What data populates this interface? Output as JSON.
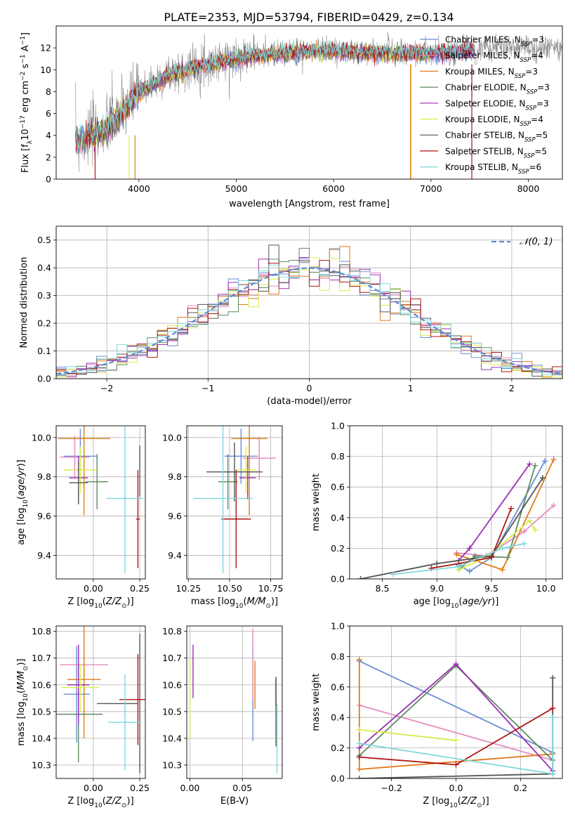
{
  "figure": {
    "title": "PLATE=2353, MJD=53794, FIBERID=0429, z=0.134"
  },
  "colors": {
    "Chabrier MILES": "#6b8dd6",
    "Salpeter MILES": "#e58cc0",
    "Kroupa MILES": "#e07b1a",
    "Chabrier ELODIE": "#5f8a60",
    "Salpeter ELODIE": "#9a2fb3",
    "Kroupa ELODIE": "#d9ec4c",
    "Chabrier STELIB": "#555555",
    "Salpeter STELIB": "#b01515",
    "Kroupa STELIB": "#7fd7dd",
    "gaussian": "#5b8ad6",
    "spectrum": "#888888"
  },
  "chart_data": [
    {
      "id": "spectrum",
      "type": "line",
      "xlabel": "wavelength [Angstrom, rest frame]",
      "ylabel": "Flux [f",
      "ylabel_html": "Flux [f_λ10^-17 erg cm^-2 s^-1 A^-1]",
      "xlim": [
        3150,
        8350
      ],
      "ylim": [
        0,
        14
      ],
      "xticks": [
        4000,
        5000,
        6000,
        7000,
        8000
      ],
      "yticks": [
        0,
        2,
        4,
        6,
        8,
        10,
        12
      ],
      "grid": false,
      "legend_loc": "upper right",
      "series": [
        {
          "name": "Chabrier MILES, N_SSP=3",
          "color_key": "Chabrier MILES"
        },
        {
          "name": "Salpeter MILES, N_SSP=4",
          "color_key": "Salpeter MILES"
        },
        {
          "name": "Kroupa MILES, N_SSP=3",
          "color_key": "Kroupa MILES"
        },
        {
          "name": "Chabrier ELODIE, N_SSP=3",
          "color_key": "Chabrier ELODIE"
        },
        {
          "name": "Salpeter ELODIE, N_SSP=3",
          "color_key": "Salpeter ELODIE"
        },
        {
          "name": "Kroupa ELODIE, N_SSP=4",
          "color_key": "Kroupa ELODIE"
        },
        {
          "name": "Chabrier STELIB, N_SSP=5",
          "color_key": "Chabrier STELIB"
        },
        {
          "name": "Salpeter STELIB, N_SSP=5",
          "color_key": "Salpeter STELIB"
        },
        {
          "name": "Kroupa STELIB, N_SSP=6",
          "color_key": "Kroupa STELIB"
        }
      ],
      "data_continuum": {
        "x": [
          3350,
          3500,
          3650,
          3800,
          3950,
          4100,
          4300,
          4500,
          4700,
          4900,
          5100,
          5300,
          5500,
          5700,
          5900,
          6100,
          6300,
          6500,
          6700,
          6900,
          7100,
          7300,
          7450
        ],
        "y": [
          3.4,
          4.0,
          4.6,
          6.0,
          7.6,
          8.6,
          9.6,
          10.2,
          10.6,
          11.0,
          11.4,
          11.5,
          11.6,
          11.8,
          11.9,
          11.8,
          11.7,
          11.7,
          11.6,
          11.6,
          11.6,
          11.8,
          12.0
        ]
      },
      "model_continuum": {
        "x": [
          3350,
          3500,
          3650,
          3800,
          3950,
          4100,
          4300,
          4500,
          4700,
          4900,
          5100,
          5300,
          5500,
          5700,
          5900,
          6100,
          6300,
          6500,
          6700,
          6900,
          7100,
          7300,
          7450
        ],
        "y": [
          3.3,
          4.0,
          4.4,
          5.8,
          7.4,
          8.4,
          9.4,
          10.0,
          10.4,
          10.8,
          11.2,
          11.3,
          11.5,
          11.6,
          11.7,
          11.6,
          11.5,
          11.5,
          11.4,
          11.5,
          11.5,
          11.6,
          11.7
        ]
      }
    },
    {
      "id": "residuals",
      "type": "line",
      "xlabel": "(data-model)/error",
      "ylabel": "Normed distribution",
      "xlim": [
        -2.5,
        2.5
      ],
      "ylim": [
        0,
        0.55
      ],
      "xticks": [
        -2,
        -1,
        0,
        1,
        2
      ],
      "yticks": [
        0.0,
        0.1,
        0.2,
        0.3,
        0.4,
        0.5
      ],
      "grid": true,
      "legend_loc": "upper right",
      "legend_label": "𝒩(0, 1)",
      "bin_width": 0.1,
      "bins_start": -2.5,
      "reference_curve": "standard normal N(0,1)"
    },
    {
      "id": "age-vs-Z",
      "type": "scatter",
      "xlabel": "Z [log",
      "ylabel": "age  [log",
      "xlim": [
        -0.2,
        0.28
      ],
      "ylim": [
        9.28,
        10.06
      ],
      "xticks": [
        0.0,
        0.25
      ],
      "xticklabels": [
        "0.00",
        "0.25"
      ],
      "yticks": [
        9.4,
        9.6,
        9.8,
        10.0
      ],
      "grid": true,
      "points": [
        {
          "color_key": "Chabrier MILES",
          "x": -0.07,
          "y": 9.905,
          "xerr": 0.09,
          "yerr": 0.14
        },
        {
          "color_key": "Salpeter MILES",
          "x": -0.1,
          "y": 9.9,
          "xerr": 0.08,
          "yerr": 0.11
        },
        {
          "color_key": "Kroupa MILES",
          "x": -0.05,
          "y": 9.995,
          "xerr": 0.14,
          "yerr": 0.39
        },
        {
          "color_key": "Chabrier ELODIE",
          "x": 0.02,
          "y": 9.775,
          "xerr": 0.06,
          "yerr": 0.14
        },
        {
          "color_key": "Salpeter ELODIE",
          "x": -0.08,
          "y": 9.795,
          "xerr": 0.05,
          "yerr": 0.11
        },
        {
          "color_key": "Kroupa ELODIE",
          "x": -0.07,
          "y": 9.835,
          "xerr": 0.09,
          "yerr": 0.12
        },
        {
          "color_key": "Chabrier STELIB",
          "x": 0.25,
          "y": 9.83,
          "xerr": 0.0,
          "yerr": 0.13
        },
        {
          "color_key": "Salpeter STELIB",
          "x": 0.24,
          "y": 9.585,
          "xerr": 0.01,
          "yerr": 0.25
        },
        {
          "color_key": "Kroupa STELIB",
          "x": 0.17,
          "y": 9.69,
          "xerr": 0.1,
          "yerr": 0.38
        },
        {
          "color_key": "Chabrier STELIB",
          "x": -0.08,
          "y": 9.77,
          "xerr": 0.05,
          "yerr": 0.11
        }
      ]
    },
    {
      "id": "age-vs-mass",
      "type": "scatter",
      "xlabel": "mass [log",
      "xlim": [
        10.24,
        10.82
      ],
      "ylim": [
        9.28,
        10.06
      ],
      "xticks": [
        10.25,
        10.5,
        10.75
      ],
      "xticklabels": [
        "10.25",
        "10.50",
        "10.75"
      ],
      "yticks": [
        9.4,
        9.6,
        9.8,
        10.0
      ],
      "grid": true,
      "points": [
        {
          "color_key": "Chabrier MILES",
          "x": 10.57,
          "y": 9.905,
          "xerr": 0.1,
          "yerr": 0.14
        },
        {
          "color_key": "Salpeter MILES",
          "x": 10.68,
          "y": 9.895,
          "xerr": 0.1,
          "yerr": 0.11
        },
        {
          "color_key": "Kroupa MILES",
          "x": 10.62,
          "y": 9.995,
          "xerr": 0.11,
          "yerr": 0.39
        },
        {
          "color_key": "Chabrier ELODIE",
          "x": 10.49,
          "y": 9.775,
          "xerr": 0.06,
          "yerr": 0.14
        },
        {
          "color_key": "Salpeter ELODIE",
          "x": 10.61,
          "y": 9.795,
          "xerr": 0.05,
          "yerr": 0.11
        },
        {
          "color_key": "Kroupa ELODIE",
          "x": 10.6,
          "y": 9.835,
          "xerr": 0.06,
          "yerr": 0.12
        },
        {
          "color_key": "Chabrier STELIB",
          "x": 10.53,
          "y": 9.825,
          "xerr": 0.17,
          "yerr": 0.15
        },
        {
          "color_key": "Salpeter STELIB",
          "x": 10.54,
          "y": 9.585,
          "xerr": 0.09,
          "yerr": 0.25
        },
        {
          "color_key": "Kroupa STELIB",
          "x": 10.46,
          "y": 9.69,
          "xerr": 0.18,
          "yerr": 0.38
        }
      ]
    },
    {
      "id": "weight-vs-age",
      "type": "line",
      "xlabel": "age  [log",
      "ylabel": "mass weight",
      "xlim": [
        8.2,
        10.15
      ],
      "ylim": [
        0,
        1
      ],
      "xticks": [
        8.5,
        9.0,
        9.5,
        10.0
      ],
      "yticks": [
        0.0,
        0.2,
        0.4,
        0.6,
        0.8,
        1.0
      ],
      "grid": true,
      "series": [
        {
          "color_key": "Chabrier MILES",
          "x": [
            9.2,
            9.3,
            9.5,
            9.99
          ],
          "y": [
            0.09,
            0.05,
            0.14,
            0.77
          ]
        },
        {
          "color_key": "Salpeter MILES",
          "x": [
            9.18,
            9.45,
            9.8,
            10.07
          ],
          "y": [
            0.17,
            0.15,
            0.31,
            0.48
          ]
        },
        {
          "color_key": "Kroupa MILES",
          "x": [
            9.18,
            9.6,
            10.07
          ],
          "y": [
            0.16,
            0.06,
            0.78
          ]
        },
        {
          "color_key": "Chabrier ELODIE",
          "x": [
            9.2,
            9.35,
            9.65,
            9.9
          ],
          "y": [
            0.06,
            0.15,
            0.14,
            0.74
          ]
        },
        {
          "color_key": "Salpeter ELODIE",
          "x": [
            9.2,
            9.3,
            9.85
          ],
          "y": [
            0.12,
            0.2,
            0.75
          ]
        },
        {
          "color_key": "Kroupa ELODIE",
          "x": [
            9.2,
            9.45,
            9.85,
            9.9
          ],
          "y": [
            0.06,
            0.14,
            0.38,
            0.32
          ]
        },
        {
          "color_key": "Chabrier STELIB",
          "x": [
            8.3,
            9.0,
            9.5,
            9.97
          ],
          "y": [
            0.0,
            0.1,
            0.15,
            0.66
          ]
        },
        {
          "color_key": "Salpeter STELIB",
          "x": [
            8.95,
            9.2,
            9.5,
            9.68
          ],
          "y": [
            0.07,
            0.1,
            0.14,
            0.46
          ]
        },
        {
          "color_key": "Kroupa STELIB",
          "x": [
            8.6,
            9.2,
            9.6,
            9.8
          ],
          "y": [
            0.03,
            0.08,
            0.2,
            0.23
          ]
        }
      ]
    },
    {
      "id": "mass-vs-Z",
      "type": "scatter",
      "xlabel": "Z [log",
      "ylabel": "mass [log",
      "xlim": [
        -0.2,
        0.28
      ],
      "ylim": [
        10.25,
        10.82
      ],
      "xticks": [
        0.0,
        0.25
      ],
      "xticklabels": [
        "0.00",
        "0.25"
      ],
      "yticks": [
        10.3,
        10.4,
        10.5,
        10.6,
        10.7,
        10.8
      ],
      "grid": true,
      "points": [
        {
          "color_key": "Chabrier MILES",
          "x": -0.09,
          "y": 10.565,
          "xerr": 0.07,
          "yerr": 0.18
        },
        {
          "color_key": "Salpeter MILES",
          "x": -0.05,
          "y": 10.675,
          "xerr": 0.13,
          "yerr": 0.13
        },
        {
          "color_key": "Kroupa MILES",
          "x": -0.05,
          "y": 10.62,
          "xerr": 0.09,
          "yerr": 0.22
        },
        {
          "color_key": "Chabrier ELODIE",
          "x": -0.08,
          "y": 10.49,
          "xerr": 0.13,
          "yerr": 0.18
        },
        {
          "color_key": "Salpeter ELODIE",
          "x": -0.08,
          "y": 10.6,
          "xerr": 0.06,
          "yerr": 0.15
        },
        {
          "color_key": "Kroupa ELODIE",
          "x": -0.07,
          "y": 10.59,
          "xerr": 0.1,
          "yerr": 0.09
        },
        {
          "color_key": "Chabrier STELIB",
          "x": 0.25,
          "y": 10.53,
          "xerr": 0.0,
          "yerr": 0.26
        },
        {
          "color_key": "Chabrier STELIB",
          "x": 0.13,
          "y": 10.53,
          "xerr": 0.11,
          "yerr": 0.0
        },
        {
          "color_key": "Salpeter STELIB",
          "x": 0.24,
          "y": 10.545,
          "xerr": 0.1,
          "yerr": 0.17
        },
        {
          "color_key": "Kroupa STELIB",
          "x": 0.17,
          "y": 10.46,
          "xerr": 0.09,
          "yerr": 0.18
        }
      ]
    },
    {
      "id": "mass-vs-EBV",
      "type": "scatter",
      "xlabel": "E(B-V)",
      "xlim": [
        -0.003,
        0.088
      ],
      "ylim": [
        10.25,
        10.82
      ],
      "xticks": [
        0.0,
        0.05
      ],
      "xticklabels": [
        "0.00",
        "0.05"
      ],
      "yticks": [
        10.3,
        10.4,
        10.5,
        10.6,
        10.7,
        10.8
      ],
      "grid": true,
      "points": [
        {
          "color_key": "Chabrier MILES",
          "x": 0.06,
          "y": 10.57,
          "xerr": 0,
          "yerr": 0.18
        },
        {
          "color_key": "Salpeter MILES",
          "x": 0.06,
          "y": 10.68,
          "xerr": 0,
          "yerr": 0.13
        },
        {
          "color_key": "Kroupa MILES",
          "x": 0.062,
          "y": 10.6,
          "xerr": 0,
          "yerr": 0.09
        },
        {
          "color_key": "Salpeter ELODIE",
          "x": 0.003,
          "y": 10.65,
          "xerr": 0,
          "yerr": 0.1
        },
        {
          "color_key": "Kroupa ELODIE",
          "x": 0.0,
          "y": 10.55,
          "xerr": 0,
          "yerr": 0.15
        },
        {
          "color_key": "Salpeter STELIB",
          "x": 0.082,
          "y": 10.57,
          "xerr": 0,
          "yerr": 0.05
        },
        {
          "color_key": "Chabrier STELIB",
          "x": 0.082,
          "y": 10.5,
          "xerr": 0,
          "yerr": 0.13
        },
        {
          "color_key": "Kroupa STELIB",
          "x": 0.083,
          "y": 10.4,
          "xerr": 0,
          "yerr": 0.13
        }
      ]
    },
    {
      "id": "weight-vs-Z",
      "type": "line",
      "xlabel": "Z [log",
      "ylabel": "mass weight",
      "xlim": [
        -0.33,
        0.33
      ],
      "ylim": [
        0,
        1
      ],
      "xticks": [
        -0.2,
        0.0,
        0.2
      ],
      "xticklabels": [
        "−0.2",
        "0.0",
        "0.2"
      ],
      "yticks": [
        0.0,
        0.2,
        0.4,
        0.6,
        0.8,
        1.0
      ],
      "grid": true,
      "series": [
        {
          "color_key": "Chabrier MILES",
          "x": [
            -0.3,
            0.3
          ],
          "y": [
            0.77,
            0.17
          ]
        },
        {
          "color_key": "Salpeter MILES",
          "x": [
            -0.3,
            0.3
          ],
          "y": [
            0.48,
            0.12
          ]
        },
        {
          "color_key": "Kroupa MILES",
          "x": [
            -0.3,
            -0.3,
            0.3
          ],
          "y": [
            0.78,
            0.06,
            0.16
          ]
        },
        {
          "color_key": "Chabrier ELODIE",
          "x": [
            -0.3,
            0.0,
            0.3
          ],
          "y": [
            0.15,
            0.74,
            0.12
          ]
        },
        {
          "color_key": "Salpeter ELODIE",
          "x": [
            -0.3,
            0.0,
            0.3
          ],
          "y": [
            0.2,
            0.75,
            0.05
          ]
        },
        {
          "color_key": "Kroupa ELODIE",
          "x": [
            -0.3,
            0.0
          ],
          "y": [
            0.32,
            0.25
          ]
        },
        {
          "color_key": "Chabrier STELIB",
          "x": [
            -0.3,
            0.3,
            0.3
          ],
          "y": [
            0.0,
            0.03,
            0.66
          ]
        },
        {
          "color_key": "Salpeter STELIB",
          "x": [
            -0.3,
            0.0,
            0.3
          ],
          "y": [
            0.14,
            0.09,
            0.46
          ]
        },
        {
          "color_key": "Kroupa STELIB",
          "x": [
            -0.3,
            0.3,
            0.3
          ],
          "y": [
            0.23,
            0.03,
            0.4
          ]
        }
      ]
    }
  ]
}
